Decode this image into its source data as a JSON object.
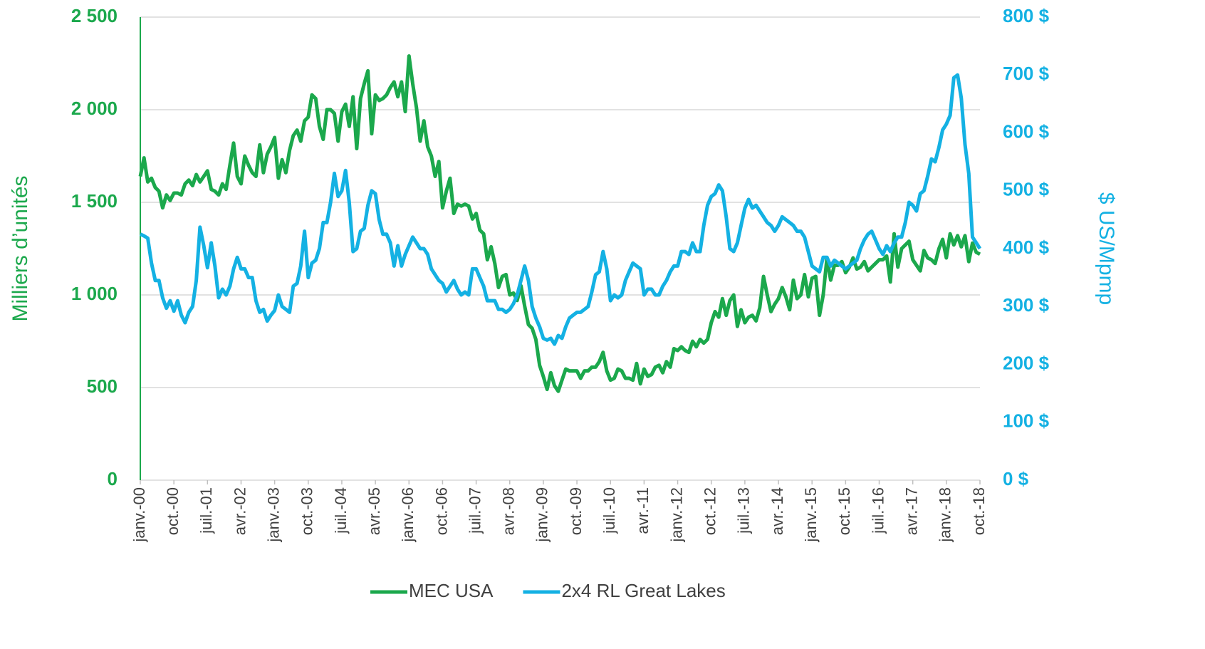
{
  "chart_data": {
    "type": "line",
    "y_label": "Milliers d’unités",
    "y2_label": "$ US/Mpmp",
    "categories": [
      "janv.-00",
      null,
      null,
      null,
      null,
      null,
      null,
      null,
      null,
      "oct.-00",
      null,
      null,
      null,
      null,
      null,
      null,
      null,
      null,
      "juil.-01",
      null,
      null,
      null,
      null,
      null,
      null,
      null,
      null,
      "avr.-02",
      null,
      null,
      null,
      null,
      null,
      null,
      null,
      null,
      "janv.-03",
      null,
      null,
      null,
      null,
      null,
      null,
      null,
      null,
      "oct.-03",
      null,
      null,
      null,
      null,
      null,
      null,
      null,
      null,
      "juil.-04",
      null,
      null,
      null,
      null,
      null,
      null,
      null,
      null,
      "avr.-05",
      null,
      null,
      null,
      null,
      null,
      null,
      null,
      null,
      "janv.-06",
      null,
      null,
      null,
      null,
      null,
      null,
      null,
      null,
      "oct.-06",
      null,
      null,
      null,
      null,
      null,
      null,
      null,
      null,
      "juil.-07",
      null,
      null,
      null,
      null,
      null,
      null,
      null,
      null,
      "avr.-08",
      null,
      null,
      null,
      null,
      null,
      null,
      null,
      null,
      "janv.-09",
      null,
      null,
      null,
      null,
      null,
      null,
      null,
      null,
      "oct.-09",
      null,
      null,
      null,
      null,
      null,
      null,
      null,
      null,
      "juil.-10",
      null,
      null,
      null,
      null,
      null,
      null,
      null,
      null,
      "avr.-11",
      null,
      null,
      null,
      null,
      null,
      null,
      null,
      null,
      "janv.-12",
      null,
      null,
      null,
      null,
      null,
      null,
      null,
      null,
      "oct.-12",
      null,
      null,
      null,
      null,
      null,
      null,
      null,
      null,
      "juil.-13",
      null,
      null,
      null,
      null,
      null,
      null,
      null,
      null,
      "avr.-14",
      null,
      null,
      null,
      null,
      null,
      null,
      null,
      null,
      "janv.-15",
      null,
      null,
      null,
      null,
      null,
      null,
      null,
      null,
      "oct.-15",
      null,
      null,
      null,
      null,
      null,
      null,
      null,
      null,
      "juil.-16",
      null,
      null,
      null,
      null,
      null,
      null,
      null,
      null,
      "avr.-17",
      null,
      null,
      null,
      null,
      null,
      null,
      null,
      null,
      "janv.-18",
      null,
      null,
      null,
      null,
      null,
      null,
      null,
      null,
      "oct.-18"
    ],
    "series": [
      {
        "name": "MEC USA",
        "color": "#1ba84c",
        "axis": "y",
        "values": [
          1640,
          1740,
          1610,
          1630,
          1580,
          1560,
          1470,
          1540,
          1510,
          1550,
          1550,
          1540,
          1600,
          1620,
          1590,
          1650,
          1610,
          1640,
          1670,
          1570,
          1560,
          1540,
          1600,
          1570,
          1700,
          1820,
          1640,
          1600,
          1750,
          1700,
          1660,
          1640,
          1810,
          1660,
          1760,
          1800,
          1850,
          1630,
          1730,
          1660,
          1780,
          1860,
          1890,
          1830,
          1940,
          1960,
          2080,
          2060,
          1910,
          1840,
          2000,
          2000,
          1980,
          1830,
          1990,
          2030,
          1910,
          2070,
          1790,
          2060,
          2140,
          2210,
          1870,
          2080,
          2050,
          2060,
          2080,
          2120,
          2150,
          2070,
          2150,
          1990,
          2290,
          2140,
          2010,
          1830,
          1940,
          1800,
          1750,
          1640,
          1720,
          1470,
          1560,
          1630,
          1440,
          1490,
          1480,
          1490,
          1480,
          1410,
          1440,
          1350,
          1330,
          1190,
          1260,
          1170,
          1040,
          1100,
          1110,
          1000,
          1010,
          970,
          1050,
          940,
          840,
          820,
          760,
          620,
          560,
          490,
          580,
          510,
          480,
          540,
          600,
          590,
          590,
          590,
          550,
          590,
          590,
          610,
          610,
          640,
          690,
          590,
          540,
          550,
          600,
          590,
          550,
          550,
          540,
          630,
          520,
          600,
          560,
          570,
          610,
          620,
          580,
          640,
          610,
          710,
          700,
          720,
          700,
          690,
          750,
          720,
          760,
          740,
          760,
          850,
          910,
          880,
          980,
          890,
          970,
          1000,
          830,
          920,
          850,
          880,
          890,
          860,
          930,
          1100,
          1000,
          910,
          950,
          980,
          1040,
          990,
          920,
          1080,
          980,
          1000,
          1110,
          990,
          1090,
          1100,
          890,
          1000,
          1200,
          1080,
          1160,
          1160,
          1180,
          1120,
          1150,
          1200,
          1140,
          1150,
          1180,
          1130,
          1150,
          1170,
          1190,
          1190,
          1210,
          1070,
          1330,
          1150,
          1250,
          1270,
          1290,
          1190,
          1160,
          1130,
          1240,
          1200,
          1190,
          1170,
          1250,
          1300,
          1200,
          1330,
          1270,
          1320,
          1260,
          1320,
          1180,
          1280,
          1230,
          1220
        ]
      },
      {
        "name": "2x4 RL Great Lakes",
        "color": "#14b1e3",
        "axis": "y2",
        "values": [
          425,
          422,
          418,
          375,
          345,
          345,
          315,
          297,
          310,
          292,
          310,
          285,
          272,
          290,
          300,
          345,
          437,
          405,
          367,
          410,
          370,
          315,
          330,
          320,
          335,
          365,
          385,
          365,
          365,
          350,
          350,
          310,
          290,
          295,
          275,
          285,
          293,
          320,
          300,
          295,
          290,
          335,
          340,
          370,
          430,
          350,
          375,
          380,
          400,
          445,
          445,
          480,
          530,
          490,
          500,
          535,
          480,
          395,
          400,
          430,
          435,
          475,
          500,
          495,
          450,
          425,
          425,
          410,
          370,
          405,
          370,
          390,
          405,
          420,
          410,
          400,
          400,
          390,
          365,
          355,
          345,
          340,
          325,
          335,
          345,
          330,
          320,
          325,
          320,
          365,
          365,
          350,
          335,
          310,
          310,
          310,
          295,
          295,
          290,
          295,
          305,
          320,
          345,
          370,
          345,
          300,
          280,
          265,
          245,
          242,
          245,
          235,
          250,
          245,
          265,
          280,
          285,
          290,
          290,
          295,
          300,
          325,
          355,
          360,
          395,
          365,
          310,
          320,
          315,
          320,
          345,
          360,
          375,
          370,
          365,
          320,
          330,
          330,
          320,
          320,
          335,
          345,
          360,
          370,
          370,
          395,
          395,
          390,
          410,
          395,
          395,
          440,
          475,
          490,
          495,
          510,
          500,
          455,
          400,
          395,
          410,
          440,
          470,
          485,
          470,
          475,
          465,
          455,
          445,
          440,
          430,
          440,
          455,
          450,
          445,
          440,
          430,
          430,
          420,
          395,
          370,
          365,
          360,
          385,
          385,
          370,
          380,
          375,
          370,
          365,
          370,
          375,
          380,
          400,
          415,
          425,
          430,
          415,
          400,
          390,
          405,
          395,
          410,
          420,
          420,
          445,
          480,
          475,
          465,
          495,
          500,
          525,
          555,
          550,
          575,
          605,
          615,
          630,
          695,
          700,
          660,
          580,
          530,
          420,
          410,
          400
        ]
      }
    ],
    "ylim": [
      0,
      2500
    ],
    "yticks": [
      0,
      500,
      {
        "value": 1000,
        "label": "1 000"
      },
      {
        "value": 1500,
        "label": "1 500"
      },
      {
        "value": 2000,
        "label": "2 000"
      },
      {
        "value": 2500,
        "label": "2 500"
      }
    ],
    "y2lim": [
      0,
      800
    ],
    "y2ticks": [
      {
        "value": 0,
        "label": "0 $"
      },
      {
        "value": 100,
        "label": "100 $"
      },
      {
        "value": 200,
        "label": "200 $"
      },
      {
        "value": 300,
        "label": "300 $"
      },
      {
        "value": 400,
        "label": "400 $"
      },
      {
        "value": 500,
        "label": "500 $"
      },
      {
        "value": 600,
        "label": "600 $"
      },
      {
        "value": 700,
        "label": "700 $"
      },
      {
        "value": 800,
        "label": "800 $"
      }
    ],
    "grid": true,
    "legend": "bottom"
  }
}
